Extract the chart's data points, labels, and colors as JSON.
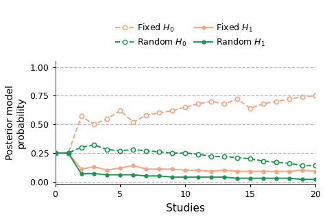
{
  "x": [
    0,
    1,
    2,
    3,
    4,
    5,
    6,
    7,
    8,
    9,
    10,
    11,
    12,
    13,
    14,
    15,
    16,
    17,
    18,
    19,
    20
  ],
  "fixed_h0": [
    0.25,
    0.25,
    0.57,
    0.5,
    0.55,
    0.62,
    0.52,
    0.58,
    0.6,
    0.62,
    0.65,
    0.68,
    0.7,
    0.68,
    0.72,
    0.64,
    0.68,
    0.7,
    0.72,
    0.74,
    0.75
  ],
  "fixed_h1": [
    0.25,
    0.25,
    0.11,
    0.13,
    0.1,
    0.12,
    0.14,
    0.11,
    0.11,
    0.11,
    0.1,
    0.1,
    0.09,
    0.1,
    0.09,
    0.09,
    0.09,
    0.09,
    0.09,
    0.1,
    0.09
  ],
  "random_h0": [
    0.25,
    0.25,
    0.3,
    0.32,
    0.28,
    0.27,
    0.28,
    0.27,
    0.26,
    0.25,
    0.25,
    0.24,
    0.22,
    0.22,
    0.21,
    0.2,
    0.18,
    0.17,
    0.16,
    0.14,
    0.14
  ],
  "random_h1": [
    0.25,
    0.25,
    0.07,
    0.07,
    0.06,
    0.06,
    0.06,
    0.05,
    0.05,
    0.04,
    0.04,
    0.04,
    0.04,
    0.04,
    0.03,
    0.03,
    0.03,
    0.03,
    0.03,
    0.02,
    0.02
  ],
  "color_salmon": "#F4A582",
  "color_green": "#1A9850",
  "xlabel": "Studies",
  "ylabel": "Posterior model\nprobability",
  "xlim": [
    0,
    20
  ],
  "ylim": [
    -0.02,
    1.05
  ],
  "xticks": [
    0,
    5,
    10,
    15,
    20
  ],
  "yticks": [
    0.0,
    0.25,
    0.5,
    0.75,
    1.0
  ],
  "grid_color": "#BBBBBB",
  "background_color": "#FFFFFF"
}
